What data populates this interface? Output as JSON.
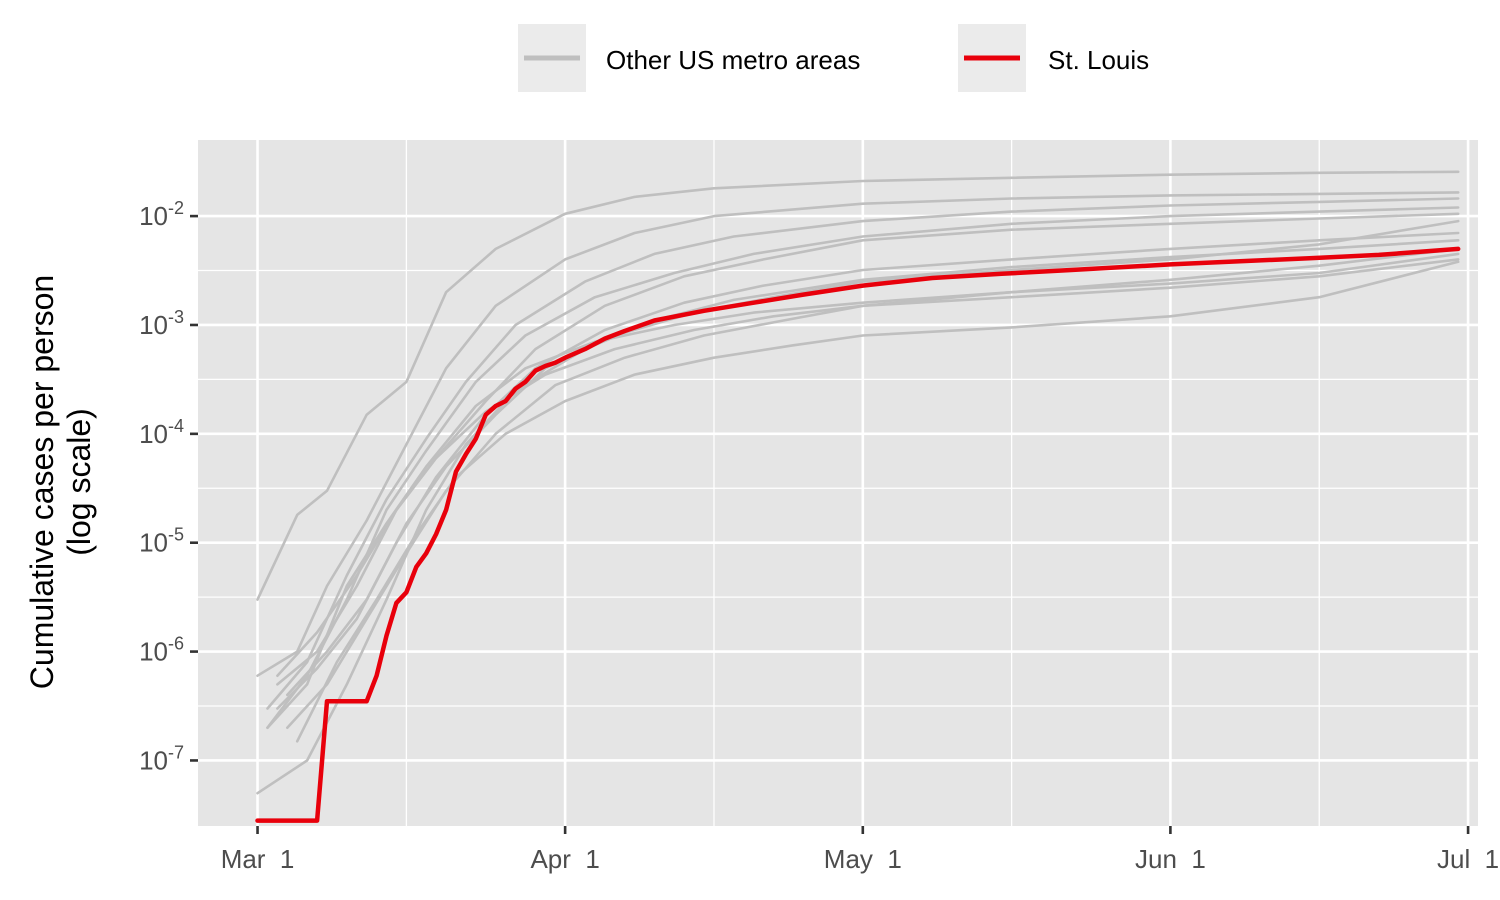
{
  "chart_data": {
    "type": "line",
    "xlabel": "",
    "ylabel": "Cumulative cases per person",
    "ylabel_line2": "(log scale)",
    "y_scale": "log10",
    "ylim": [
      2.5e-08,
      0.05
    ],
    "xlim": [
      "2020-02-24",
      "2020-07-02"
    ],
    "x_ticks": [
      {
        "date": "2020-03-01",
        "label": "Mar  1"
      },
      {
        "date": "2020-04-01",
        "label": "Apr  1"
      },
      {
        "date": "2020-05-01",
        "label": "May  1"
      },
      {
        "date": "2020-06-01",
        "label": "Jun  1"
      },
      {
        "date": "2020-07-01",
        "label": "Jul  1"
      }
    ],
    "x_minor_ticks": [
      "2020-03-16",
      "2020-04-16",
      "2020-05-16",
      "2020-06-16"
    ],
    "y_ticks": [
      {
        "value": 1e-07,
        "base": "10",
        "exp": "-7"
      },
      {
        "value": 1e-06,
        "base": "10",
        "exp": "-6"
      },
      {
        "value": 1e-05,
        "base": "10",
        "exp": "-5"
      },
      {
        "value": 0.0001,
        "base": "10",
        "exp": "-4"
      },
      {
        "value": 0.001,
        "base": "10",
        "exp": "-3"
      },
      {
        "value": 0.01,
        "base": "10",
        "exp": "-2"
      }
    ],
    "grid": true,
    "legend_position": "top",
    "legend": [
      {
        "label": "Other US metro areas",
        "color": "#bfbfbf"
      },
      {
        "label": "St. Louis",
        "color": "#e8000b"
      }
    ],
    "colors": {
      "panel": "#e5e5e5",
      "grid": "#ffffff",
      "others": "#bfbfbf",
      "highlight": "#e8000b"
    },
    "series": [
      {
        "group": "Other US metro areas",
        "x": [
          "2020-03-01",
          "2020-03-05",
          "2020-03-08",
          "2020-03-12",
          "2020-03-16",
          "2020-03-20",
          "2020-03-25",
          "2020-04-01",
          "2020-04-08",
          "2020-04-16",
          "2020-05-01",
          "2020-05-16",
          "2020-06-01",
          "2020-06-16",
          "2020-06-30"
        ],
        "y": [
          3e-06,
          1.8e-05,
          3e-05,
          0.00015,
          0.0003,
          0.002,
          0.005,
          0.0105,
          0.015,
          0.018,
          0.021,
          0.0225,
          0.024,
          0.025,
          0.0255
        ]
      },
      {
        "group": "Other US metro areas",
        "x": [
          "2020-03-01",
          "2020-03-05",
          "2020-03-08",
          "2020-03-12",
          "2020-03-16",
          "2020-03-20",
          "2020-03-25",
          "2020-04-01",
          "2020-04-08",
          "2020-04-16",
          "2020-05-01",
          "2020-05-16",
          "2020-06-01",
          "2020-06-16",
          "2020-06-30"
        ],
        "y": [
          6e-07,
          1e-06,
          4e-06,
          1.6e-05,
          8e-05,
          0.0004,
          0.0015,
          0.004,
          0.007,
          0.01,
          0.013,
          0.0145,
          0.0155,
          0.016,
          0.0165
        ]
      },
      {
        "group": "Other US metro areas",
        "x": [
          "2020-03-02",
          "2020-03-06",
          "2020-03-10",
          "2020-03-14",
          "2020-03-18",
          "2020-03-22",
          "2020-03-27",
          "2020-04-03",
          "2020-04-10",
          "2020-04-18",
          "2020-05-01",
          "2020-05-16",
          "2020-06-01",
          "2020-06-16",
          "2020-06-30"
        ],
        "y": [
          3e-07,
          8e-07,
          5e-06,
          2.5e-05,
          9e-05,
          0.0003,
          0.001,
          0.0025,
          0.0045,
          0.0065,
          0.009,
          0.011,
          0.0125,
          0.0135,
          0.0145
        ]
      },
      {
        "group": "Other US metro areas",
        "x": [
          "2020-03-02",
          "2020-03-06",
          "2020-03-10",
          "2020-03-14",
          "2020-03-18",
          "2020-03-23",
          "2020-03-28",
          "2020-04-04",
          "2020-04-12",
          "2020-04-20",
          "2020-05-01",
          "2020-05-16",
          "2020-06-01",
          "2020-06-16",
          "2020-06-30"
        ],
        "y": [
          2e-07,
          6e-07,
          3e-06,
          2e-05,
          7e-05,
          0.0003,
          0.0008,
          0.0018,
          0.003,
          0.0045,
          0.0065,
          0.0085,
          0.01,
          0.011,
          0.012
        ]
      },
      {
        "group": "Other US metro areas",
        "x": [
          "2020-03-03",
          "2020-03-07",
          "2020-03-11",
          "2020-03-15",
          "2020-03-19",
          "2020-03-24",
          "2020-03-29",
          "2020-04-05",
          "2020-04-13",
          "2020-04-21",
          "2020-05-01",
          "2020-05-16",
          "2020-06-01",
          "2020-06-16",
          "2020-06-30"
        ],
        "y": [
          5e-07,
          1e-06,
          4e-06,
          2e-05,
          6e-05,
          0.0002,
          0.0006,
          0.0015,
          0.0028,
          0.004,
          0.006,
          0.0075,
          0.0085,
          0.0095,
          0.0105
        ]
      },
      {
        "group": "Other US metro areas",
        "x": [
          "2020-03-03",
          "2020-03-07",
          "2020-03-11",
          "2020-03-15",
          "2020-03-19",
          "2020-03-24",
          "2020-03-29",
          "2020-04-05",
          "2020-04-13",
          "2020-04-21",
          "2020-05-01",
          "2020-05-16",
          "2020-06-01",
          "2020-06-16",
          "2020-06-30"
        ],
        "y": [
          3e-07,
          7e-07,
          2e-06,
          1e-05,
          4e-05,
          0.00015,
          0.0004,
          0.0009,
          0.0016,
          0.0023,
          0.0032,
          0.004,
          0.005,
          0.006,
          0.007
        ]
      },
      {
        "group": "Other US metro areas",
        "x": [
          "2020-03-04",
          "2020-03-08",
          "2020-03-12",
          "2020-03-16",
          "2020-03-20",
          "2020-03-25",
          "2020-03-30",
          "2020-04-06",
          "2020-04-14",
          "2020-04-22",
          "2020-05-01",
          "2020-05-16",
          "2020-06-01",
          "2020-06-16",
          "2020-06-30"
        ],
        "y": [
          4e-07,
          1e-06,
          3e-06,
          1.5e-05,
          5e-05,
          0.00015,
          0.0004,
          0.0008,
          0.0013,
          0.0018,
          0.0025,
          0.0032,
          0.004,
          0.0055,
          0.009
        ]
      },
      {
        "group": "Other US metro areas",
        "x": [
          "2020-03-04",
          "2020-03-08",
          "2020-03-12",
          "2020-03-16",
          "2020-03-20",
          "2020-03-25",
          "2020-03-31",
          "2020-04-07",
          "2020-04-15",
          "2020-04-23",
          "2020-05-01",
          "2020-05-16",
          "2020-06-01",
          "2020-06-16",
          "2020-06-30"
        ],
        "y": [
          2e-07,
          5e-07,
          2e-06,
          8e-06,
          3e-05,
          0.0001,
          0.00028,
          0.0005,
          0.0008,
          0.0011,
          0.0015,
          0.002,
          0.0026,
          0.0035,
          0.005
        ]
      },
      {
        "group": "Other US metro areas",
        "x": [
          "2020-03-03",
          "2020-03-07",
          "2020-03-11",
          "2020-03-15",
          "2020-03-19",
          "2020-03-24",
          "2020-03-30",
          "2020-04-06",
          "2020-04-14",
          "2020-04-22",
          "2020-05-01",
          "2020-05-16",
          "2020-06-01",
          "2020-06-16",
          "2020-06-30"
        ],
        "y": [
          6e-07,
          1.5e-06,
          5e-06,
          2e-05,
          6e-05,
          0.00016,
          0.00035,
          0.0006,
          0.0009,
          0.0012,
          0.0015,
          0.0018,
          0.0022,
          0.0028,
          0.004
        ]
      },
      {
        "group": "Other US metro areas",
        "x": [
          "2020-03-05",
          "2020-03-09",
          "2020-03-13",
          "2020-03-17",
          "2020-03-21",
          "2020-03-26",
          "2020-04-01",
          "2020-04-08",
          "2020-04-16",
          "2020-04-24",
          "2020-05-01",
          "2020-05-16",
          "2020-06-01",
          "2020-06-16",
          "2020-06-30"
        ],
        "y": [
          1.5e-07,
          8e-07,
          3e-06,
          1.2e-05,
          4e-05,
          0.0001,
          0.0002,
          0.00035,
          0.0005,
          0.00065,
          0.0008,
          0.00095,
          0.0012,
          0.0018,
          0.0038
        ]
      },
      {
        "group": "Other US metro areas",
        "x": [
          "2020-03-01",
          "2020-03-06",
          "2020-03-10",
          "2020-03-14",
          "2020-03-18",
          "2020-03-22",
          "2020-03-27",
          "2020-04-03",
          "2020-04-10",
          "2020-04-18",
          "2020-05-01",
          "2020-05-16",
          "2020-06-01",
          "2020-06-16",
          "2020-06-30"
        ],
        "y": [
          5e-08,
          1e-07,
          5e-07,
          3e-06,
          2e-05,
          8e-05,
          0.00025,
          0.0006,
          0.0011,
          0.0017,
          0.0026,
          0.0034,
          0.0042,
          0.005,
          0.006
        ]
      },
      {
        "group": "Other US metro areas",
        "x": [
          "2020-03-02",
          "2020-03-06",
          "2020-03-10",
          "2020-03-14",
          "2020-03-18",
          "2020-03-23",
          "2020-03-28",
          "2020-04-04",
          "2020-04-12",
          "2020-04-20",
          "2020-05-01",
          "2020-05-16",
          "2020-06-01",
          "2020-06-16",
          "2020-06-30"
        ],
        "y": [
          2e-07,
          5e-07,
          4e-06,
          1.5e-05,
          5e-05,
          0.00018,
          0.0004,
          0.0007,
          0.001,
          0.0013,
          0.0016,
          0.002,
          0.0024,
          0.003,
          0.0045
        ]
      },
      {
        "group": "St. Louis",
        "x": [
          "2020-03-01",
          "2020-03-07",
          "2020-03-08",
          "2020-03-12",
          "2020-03-13",
          "2020-03-14",
          "2020-03-15",
          "2020-03-16",
          "2020-03-17",
          "2020-03-18",
          "2020-03-19",
          "2020-03-20",
          "2020-03-21",
          "2020-03-22",
          "2020-03-23",
          "2020-03-24",
          "2020-03-25",
          "2020-03-26",
          "2020-03-27",
          "2020-03-28",
          "2020-03-29",
          "2020-03-30",
          "2020-03-31",
          "2020-04-01",
          "2020-04-03",
          "2020-04-05",
          "2020-04-07",
          "2020-04-10",
          "2020-04-15",
          "2020-04-20",
          "2020-04-25",
          "2020-05-01",
          "2020-05-08",
          "2020-05-15",
          "2020-05-22",
          "2020-06-01",
          "2020-06-08",
          "2020-06-15",
          "2020-06-22",
          "2020-06-30"
        ],
        "y": [
          2.8e-08,
          2.8e-08,
          3.5e-07,
          3.5e-07,
          6e-07,
          1.4e-06,
          2.8e-06,
          3.5e-06,
          6e-06,
          8e-06,
          1.2e-05,
          2e-05,
          4.5e-05,
          6.5e-05,
          9e-05,
          0.00015,
          0.00018,
          0.0002,
          0.00026,
          0.0003,
          0.00038,
          0.00042,
          0.00045,
          0.0005,
          0.0006,
          0.00075,
          0.00088,
          0.0011,
          0.00135,
          0.0016,
          0.0019,
          0.0023,
          0.0027,
          0.00295,
          0.0032,
          0.0036,
          0.00385,
          0.0041,
          0.0044,
          0.005
        ]
      }
    ]
  }
}
